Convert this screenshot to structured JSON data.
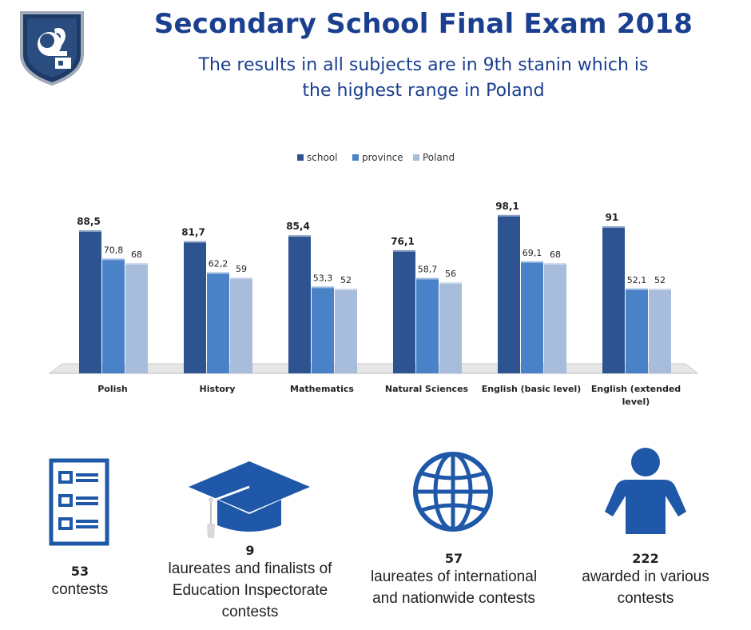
{
  "header": {
    "title": "Secondary School Final Exam 2018",
    "subtitle_lines": [
      "The results in all subjects are in 9th stanin which is",
      "the highest range in Poland"
    ]
  },
  "colors": {
    "title": "#1b3f8f",
    "school": "#2d5490",
    "province": "#4a82c7",
    "poland": "#a8bcdc",
    "icon": "#1f58a8"
  },
  "chart_data": {
    "type": "bar",
    "categories": [
      "Polish",
      "History",
      "Mathematics",
      "Natural Sciences",
      "English (basic level)",
      "English (extended level)"
    ],
    "category_label_lines": [
      [
        "Polish"
      ],
      [
        "History"
      ],
      [
        "Mathematics"
      ],
      [
        "Natural Sciences"
      ],
      [
        "English (basic level)"
      ],
      [
        "English (extended",
        "level)"
      ]
    ],
    "series": [
      {
        "name": "school",
        "values": [
          88.5,
          81.7,
          85.4,
          76.1,
          98.1,
          91
        ],
        "labels": [
          "88,5",
          "81,7",
          "85,4",
          "76,1",
          "98,1",
          "91"
        ]
      },
      {
        "name": "province",
        "values": [
          70.8,
          62.2,
          53.3,
          58.7,
          69.1,
          52.1
        ],
        "labels": [
          "70,8",
          "62,2",
          "53,3",
          "58,7",
          "69,1",
          "52,1"
        ]
      },
      {
        "name": "Poland",
        "values": [
          68,
          59,
          52,
          56,
          68,
          52
        ],
        "labels": [
          "68",
          "59",
          "52",
          "56",
          "68",
          "52"
        ]
      }
    ],
    "legend": "top-center",
    "ylim": [
      0,
      100
    ],
    "grid": false
  },
  "stats": [
    {
      "number": "53",
      "text_lines": [
        "contests"
      ],
      "icon": "list-icon"
    },
    {
      "number": "9",
      "text_lines": [
        "laureates and finalists of",
        "Education Inspectorate",
        "contests"
      ],
      "icon": "graduation-cap-icon"
    },
    {
      "number": "57",
      "text_lines": [
        "laureates of international",
        "and nationwide contests"
      ],
      "icon": "globe-icon"
    },
    {
      "number": "222",
      "text_lines": [
        "awarded in various",
        "contests"
      ],
      "icon": "person-icon"
    }
  ]
}
